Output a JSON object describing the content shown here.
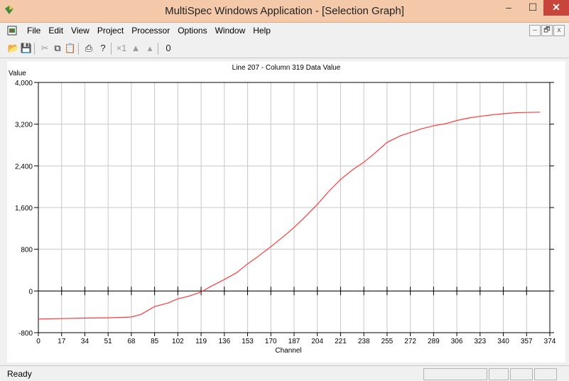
{
  "window": {
    "title": "MultiSpec Windows Application - [Selection Graph]"
  },
  "window_buttons": {
    "minimize": "–",
    "maximize": "☐",
    "close": "✕"
  },
  "menu": [
    "File",
    "Edit",
    "View",
    "Project",
    "Processor",
    "Options",
    "Window",
    "Help"
  ],
  "mdi_buttons": {
    "minimize": "–",
    "restore": "🗗",
    "close": "x"
  },
  "toolbar": [
    {
      "icon": "open-folder-icon",
      "glyph": "📂",
      "enabled": true
    },
    {
      "icon": "save-icon",
      "glyph": "💾",
      "enabled": false
    },
    {
      "icon": "cut-icon",
      "glyph": "✂",
      "enabled": false
    },
    {
      "icon": "copy-icon",
      "glyph": "⧉",
      "enabled": true
    },
    {
      "icon": "paste-icon",
      "glyph": "📋",
      "enabled": false
    },
    {
      "icon": "print-icon",
      "glyph": "⎙",
      "enabled": true
    },
    {
      "icon": "help-icon",
      "glyph": "?",
      "enabled": true
    },
    {
      "icon": "zoom-x1-icon",
      "glyph": "×1",
      "enabled": false
    },
    {
      "icon": "zoom-in-icon",
      "glyph": "▲",
      "enabled": false
    },
    {
      "icon": "zoom-out-icon",
      "glyph": "▴",
      "enabled": false
    },
    {
      "icon": "overlay-icon",
      "glyph": "0",
      "enabled": true
    }
  ],
  "status": {
    "text": "Ready"
  },
  "chart_data": {
    "type": "line",
    "title": "Line 207 - Column 319 Data Value",
    "xlabel": "Channel",
    "ylabel": "Value",
    "xlim": [
      0,
      374
    ],
    "ylim": [
      -800,
      4000
    ],
    "xticks": [
      0,
      17,
      34,
      51,
      68,
      85,
      102,
      119,
      136,
      153,
      170,
      187,
      204,
      221,
      238,
      255,
      272,
      289,
      306,
      323,
      340,
      357,
      374
    ],
    "yticks": [
      -800,
      0,
      800,
      1600,
      2400,
      3200,
      4000
    ],
    "ytick_labels": [
      "-800",
      "0",
      "800",
      "1,600",
      "2,400",
      "3,200",
      "4,000"
    ],
    "grid": true,
    "color": "#ff3b3b",
    "series": [
      {
        "x": [
          0,
          17,
          34,
          51,
          68,
          75,
          85,
          95,
          102,
          110,
          119,
          125,
          136,
          145,
          153,
          160,
          170,
          180,
          187,
          195,
          204,
          212,
          221,
          230,
          238,
          245,
          255,
          265,
          272,
          280,
          289,
          298,
          306,
          315,
          323,
          332,
          340,
          350,
          357,
          367
        ],
        "y": [
          -540,
          -530,
          -520,
          -515,
          -500,
          -450,
          -300,
          -230,
          -150,
          -100,
          -20,
          70,
          220,
          350,
          520,
          650,
          850,
          1060,
          1220,
          1420,
          1660,
          1900,
          2140,
          2330,
          2470,
          2620,
          2850,
          2980,
          3040,
          3110,
          3170,
          3210,
          3270,
          3320,
          3350,
          3380,
          3400,
          3420,
          3425,
          3430
        ]
      }
    ]
  }
}
